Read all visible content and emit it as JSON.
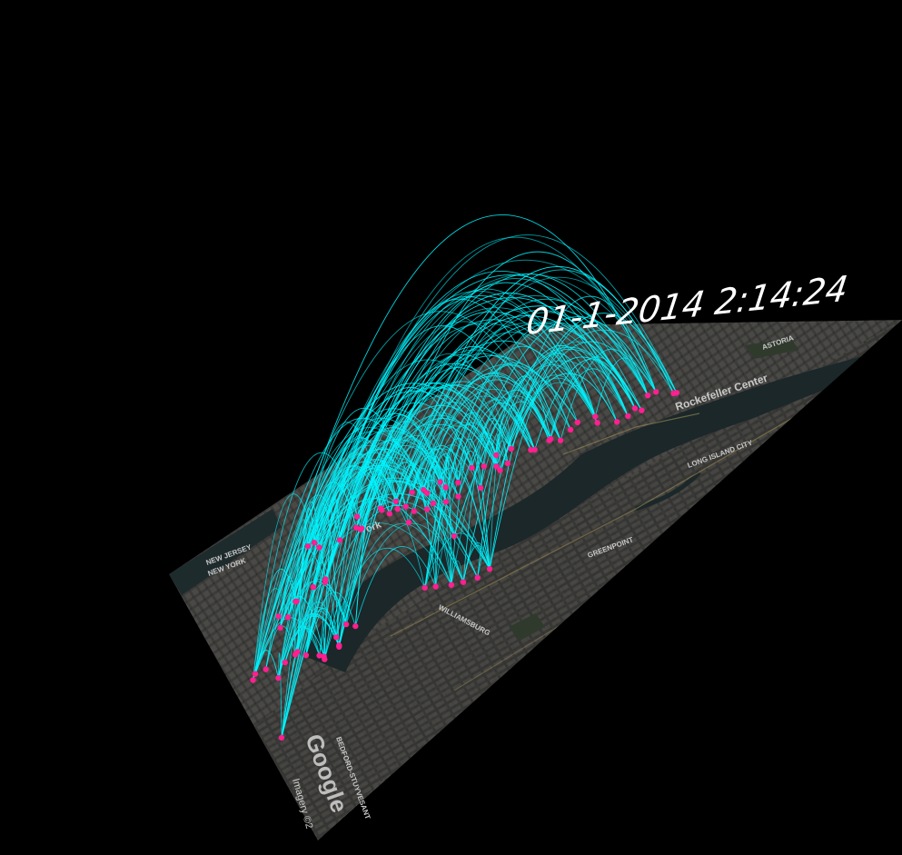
{
  "timestamp": "01-1-2014 2:14:24",
  "map": {
    "labels": {
      "rockefeller": "Rockefeller Center",
      "long_island_city": "LONG ISLAND CITY",
      "new_jersey": "NEW JERSEY",
      "new_york": "NEW YORK",
      "williamsburg": "WILLIAMSBURG",
      "greenpoint": "GREENPOINT",
      "bedford_stuyvesant": "BEDFORD-STUYVESANT",
      "york": "York",
      "astoria": "ASTORIA"
    },
    "attribution": {
      "brand": "Google",
      "imagery": "Imagery ©2"
    }
  },
  "colors": {
    "background": "#000000",
    "arc": "#00f5ff",
    "station": "#ff1f8f",
    "river": "#1c2a2c",
    "land": "#3a3a38"
  },
  "icons": {
    "station": "circle-marker"
  }
}
